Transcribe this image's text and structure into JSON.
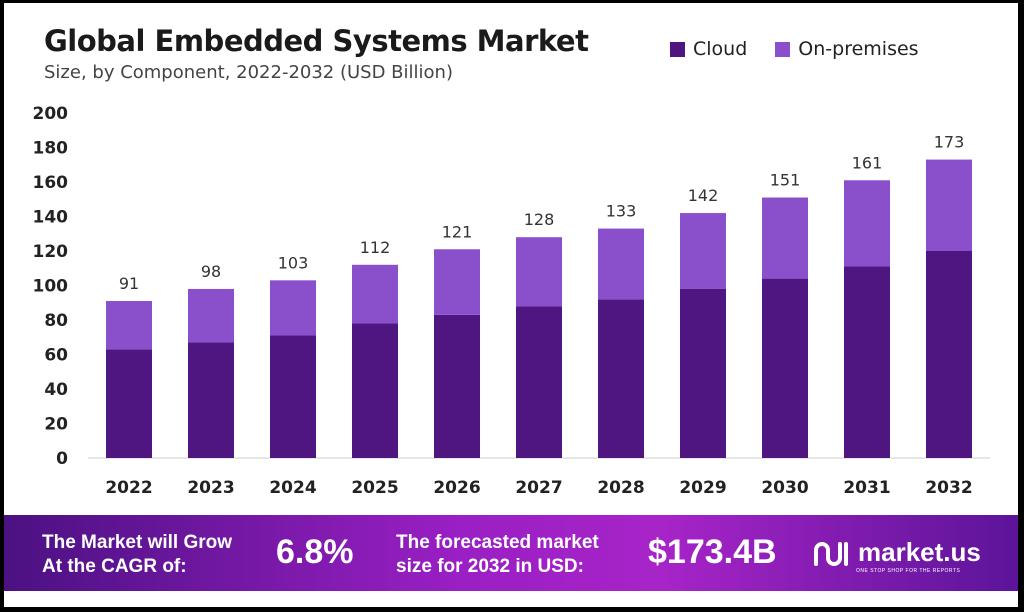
{
  "chart_data": {
    "type": "bar",
    "stacked": true,
    "title": "Global Embedded Systems Market",
    "subtitle": "Size, by Component, 2022-2032 (USD Billion)",
    "categories": [
      "2022",
      "2023",
      "2024",
      "2025",
      "2026",
      "2027",
      "2028",
      "2029",
      "2030",
      "2031",
      "2032"
    ],
    "series": [
      {
        "name": "Cloud",
        "color": "#4f1681",
        "values": [
          63,
          67,
          71,
          78,
          83,
          88,
          92,
          98,
          104,
          111,
          120
        ]
      },
      {
        "name": "On-premises",
        "color": "#8a4fcb",
        "values": [
          28,
          31,
          32,
          34,
          38,
          40,
          41,
          44,
          47,
          50,
          53
        ]
      }
    ],
    "totals": [
      91,
      98,
      103,
      112,
      121,
      128,
      133,
      142,
      151,
      161,
      173
    ],
    "ylim": [
      0,
      200
    ],
    "yticks": [
      0,
      20,
      40,
      60,
      80,
      100,
      120,
      140,
      160,
      180,
      200
    ],
    "grid": false,
    "legend_position": "top-right"
  },
  "footer": {
    "cagr_label_1": "The Market will Grow",
    "cagr_label_2": "At the CAGR of:",
    "cagr_value": "6.8%",
    "forecast_label_1": "The forecasted market",
    "forecast_label_2": "size for 2032 in USD:",
    "forecast_value": "$173.4B",
    "logo_text": "market.us",
    "logo_tagline": "ONE STOP SHOP FOR THE REPORTS"
  }
}
